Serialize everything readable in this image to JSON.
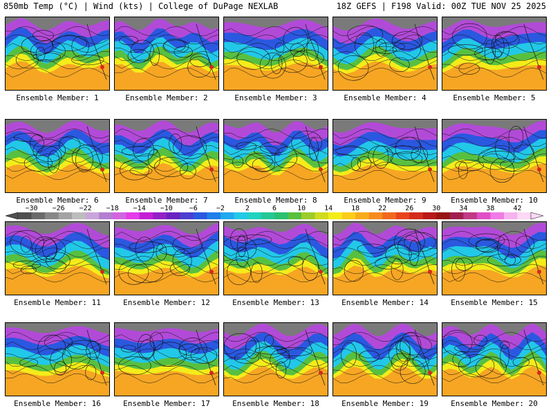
{
  "header": {
    "left": "850mb Temp (°C) | Wind (kts) | College of DuPage NEXLAB",
    "right": "18Z GEFS | F198 Valid: 00Z TUE NOV 25 2025"
  },
  "members": [
    {
      "label": "Ensemble Member: 1"
    },
    {
      "label": "Ensemble Member: 2"
    },
    {
      "label": "Ensemble Member: 3"
    },
    {
      "label": "Ensemble Member: 4"
    },
    {
      "label": "Ensemble Member: 5"
    },
    {
      "label": "Ensemble Member: 6"
    },
    {
      "label": "Ensemble Member: 7"
    },
    {
      "label": "Ensemble Member: 8"
    },
    {
      "label": "Ensemble Member: 9"
    },
    {
      "label": "Ensemble Member: 10"
    },
    {
      "label": "Ensemble Member: 11"
    },
    {
      "label": "Ensemble Member: 12"
    },
    {
      "label": "Ensemble Member: 13"
    },
    {
      "label": "Ensemble Member: 14"
    },
    {
      "label": "Ensemble Member: 15"
    },
    {
      "label": "Ensemble Member: 16"
    },
    {
      "label": "Ensemble Member: 17"
    },
    {
      "label": "Ensemble Member: 18"
    },
    {
      "label": "Ensemble Member: 19"
    },
    {
      "label": "Ensemble Member: 20"
    }
  ],
  "colorbar": {
    "min": -32,
    "max": 44,
    "step": 2,
    "ticks": [
      "−30",
      "−26",
      "−22",
      "−18",
      "−14",
      "−10",
      "−6",
      "−2",
      "2",
      "6",
      "10",
      "14",
      "18",
      "22",
      "26",
      "30",
      "34",
      "38",
      "42"
    ],
    "tick_values": [
      -30,
      -26,
      -22,
      -18,
      -14,
      -10,
      -6,
      -2,
      2,
      6,
      10,
      14,
      18,
      22,
      26,
      30,
      34,
      38,
      42
    ],
    "colors": [
      "#4f4f4f",
      "#6b6b6b",
      "#878787",
      "#a3a3a3",
      "#bcbcbc",
      "#c9a6d9",
      "#b47ed1",
      "#d264e0",
      "#e43ce8",
      "#c21fd6",
      "#9222c6",
      "#6a22c0",
      "#4a3fd0",
      "#2a58e0",
      "#1f7ee8",
      "#20a8f0",
      "#22c8e8",
      "#20d2c0",
      "#24c896",
      "#2ac070",
      "#58c040",
      "#9bcc2a",
      "#cfdc1e",
      "#f4ec1a",
      "#fccc1a",
      "#f8ac1c",
      "#f68c1c",
      "#f2681c",
      "#e8441c",
      "#d42a1c",
      "#b81818",
      "#981414",
      "#a01f50",
      "#c03a86",
      "#e04ec8",
      "#f07ae6",
      "#f6b2ee",
      "#fcd8f6"
    ]
  },
  "legend_colors": {
    "cold_grey": "#7a7a7a",
    "purple": "#b24ad8",
    "blue": "#2a58e0",
    "cyan": "#22c8e8",
    "green": "#58c040",
    "yellow": "#f4ec1a",
    "orange": "#f6a623"
  }
}
